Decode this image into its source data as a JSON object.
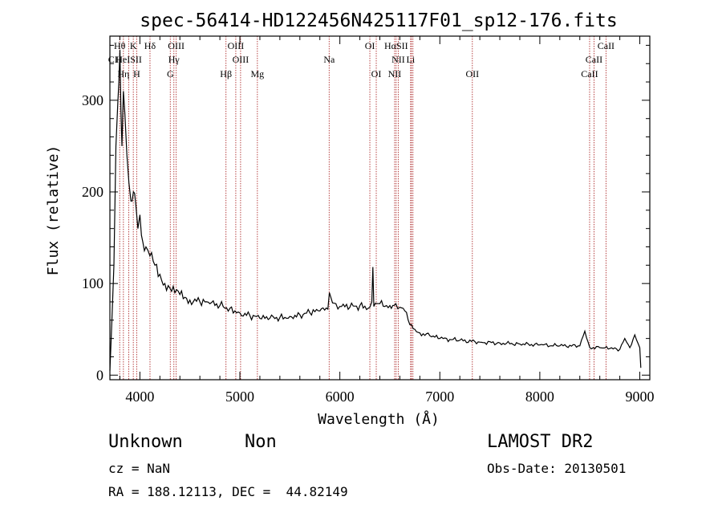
{
  "chart_data": {
    "type": "line",
    "title": "spec-56414-HD122456N425117F01_sp12-176.fits",
    "xlabel": "Wavelength (Å)",
    "ylabel": "Flux (relative)",
    "xlim": [
      3700,
      9100
    ],
    "ylim": [
      -5,
      370
    ],
    "x_ticks": [
      4000,
      5000,
      6000,
      7000,
      8000,
      9000
    ],
    "y_ticks": [
      0,
      100,
      200,
      300
    ],
    "grid": false,
    "series": [
      {
        "x": [
          3700,
          3720,
          3740,
          3760,
          3780,
          3790,
          3800,
          3810,
          3820,
          3835,
          3850,
          3870,
          3890,
          3910,
          3935,
          3960,
          3980,
          4000,
          4030,
          4060,
          4100,
          4150,
          4200,
          4250,
          4300,
          4350,
          4400,
          4450,
          4500,
          4600,
          4700,
          4800,
          4900,
          5000,
          5100,
          5200,
          5300,
          5400,
          5500,
          5600,
          5700,
          5800,
          5880,
          5895,
          5910,
          5960,
          6000,
          6100,
          6200,
          6300,
          6320,
          6330,
          6340,
          6400,
          6450,
          6500,
          6560,
          6600,
          6650,
          6700,
          6750,
          6800,
          6900,
          7000,
          7200,
          7400,
          7600,
          7800,
          8000,
          8200,
          8400,
          8450,
          8500,
          8600,
          8700,
          8800,
          8850,
          8900,
          8950,
          9000,
          9010
        ],
        "y": [
          5,
          60,
          120,
          250,
          300,
          320,
          355,
          290,
          250,
          310,
          285,
          240,
          210,
          190,
          200,
          185,
          160,
          175,
          145,
          140,
          130,
          120,
          110,
          100,
          95,
          90,
          88,
          85,
          82,
          80,
          78,
          76,
          73,
          68,
          65,
          62,
          62,
          63,
          64,
          66,
          68,
          70,
          72,
          90,
          85,
          78,
          75,
          74,
          76,
          74,
          80,
          118,
          75,
          78,
          75,
          76,
          78,
          74,
          70,
          55,
          50,
          46,
          43,
          40,
          38,
          36,
          35,
          34,
          33,
          32,
          32,
          48,
          30,
          30,
          29,
          28,
          40,
          30,
          44,
          30,
          8
        ]
      }
    ],
    "line_labels": [
      {
        "label": "Hθ",
        "x": 3798,
        "row": 1
      },
      {
        "label": "K",
        "x": 3934,
        "row": 1
      },
      {
        "label": "Hδ",
        "x": 4101,
        "row": 1
      },
      {
        "label": "OIII",
        "x": 4363,
        "row": 1
      },
      {
        "label": "OIII",
        "x": 4959,
        "row": 1
      },
      {
        "label": "OI",
        "x": 6300,
        "row": 1
      },
      {
        "label": "HαSII",
        "x": 6563,
        "row": 1
      },
      {
        "label": "CaII",
        "x": 8662,
        "row": 1
      },
      {
        "label": "CI",
        "x": 3730,
        "row": 2
      },
      {
        "label": "HeISII",
        "x": 3889,
        "row": 2
      },
      {
        "label": "Hγ",
        "x": 4340,
        "row": 2
      },
      {
        "label": "OIII",
        "x": 5007,
        "row": 2
      },
      {
        "label": "Na",
        "x": 5893,
        "row": 2
      },
      {
        "label": "NII",
        "x": 6584,
        "row": 2
      },
      {
        "label": "Li",
        "x": 6708,
        "row": 2
      },
      {
        "label": "CaII",
        "x": 8542,
        "row": 2
      },
      {
        "label": "Hη",
        "x": 3835,
        "row": 3
      },
      {
        "label": "H",
        "x": 3968,
        "row": 3
      },
      {
        "label": "G",
        "x": 4304,
        "row": 3
      },
      {
        "label": "Hβ",
        "x": 4861,
        "row": 3
      },
      {
        "label": "Mg",
        "x": 5175,
        "row": 3
      },
      {
        "label": "OI",
        "x": 6364,
        "row": 3
      },
      {
        "label": "NII",
        "x": 6548,
        "row": 3
      },
      {
        "label": "OII",
        "x": 7325,
        "row": 3
      },
      {
        "label": "CaII",
        "x": 8498,
        "row": 3
      }
    ],
    "vlines": [
      3798,
      3835,
      3889,
      3934,
      3968,
      4101,
      4304,
      4340,
      4363,
      4861,
      4959,
      5007,
      5175,
      5893,
      6300,
      6364,
      6548,
      6563,
      6584,
      6708,
      6716,
      6731,
      7325,
      8498,
      8542,
      8662
    ]
  },
  "info": {
    "object_type": "Unknown",
    "subclass": "Non",
    "survey": "LAMOST DR2",
    "cz": "cz = NaN",
    "obs_date": "Obs-Date: 20130501",
    "coords": "RA = 188.12113, DEC =  44.82149"
  },
  "colors": {
    "vline": "#b03030",
    "spectrum": "#000000"
  }
}
